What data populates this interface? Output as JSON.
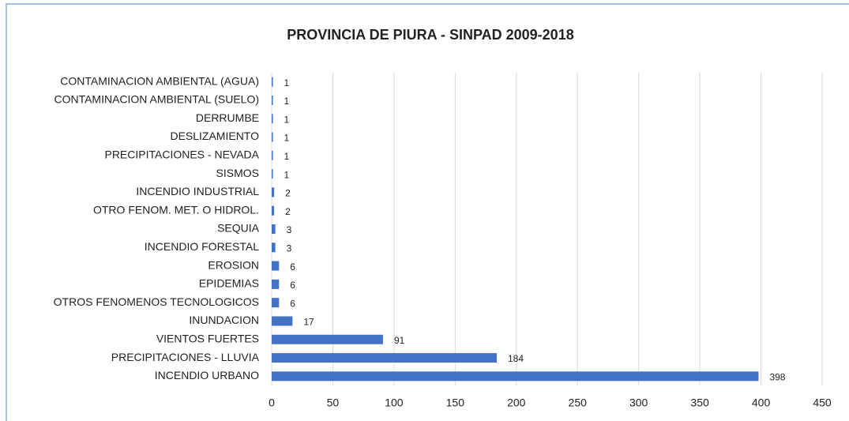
{
  "chart_data": {
    "type": "bar",
    "orientation": "horizontal",
    "title": "PROVINCIA DE PIURA - SINPAD  2009-2018",
    "categories": [
      "CONTAMINACION AMBIENTAL (AGUA)",
      "CONTAMINACION AMBIENTAL (SUELO)",
      "DERRUMBE",
      "DESLIZAMIENTO",
      "PRECIPITACIONES - NEVADA",
      "SISMOS",
      "INCENDIO INDUSTRIAL",
      "OTRO FENOM. MET. O HIDROL.",
      "SEQUIA",
      "INCENDIO FORESTAL",
      "EROSION",
      "EPIDEMIAS",
      "OTROS FENOMENOS TECNOLOGICOS",
      "INUNDACION",
      "VIENTOS FUERTES",
      "PRECIPITACIONES - LLUVIA",
      "INCENDIO URBANO"
    ],
    "values": [
      1,
      1,
      1,
      1,
      1,
      1,
      2,
      2,
      3,
      3,
      6,
      6,
      6,
      17,
      91,
      184,
      398
    ],
    "color": "#4472c4",
    "xlim": [
      0,
      450
    ],
    "xticks": [
      0,
      50,
      100,
      150,
      200,
      250,
      300,
      350,
      400,
      450
    ],
    "grid": true
  }
}
